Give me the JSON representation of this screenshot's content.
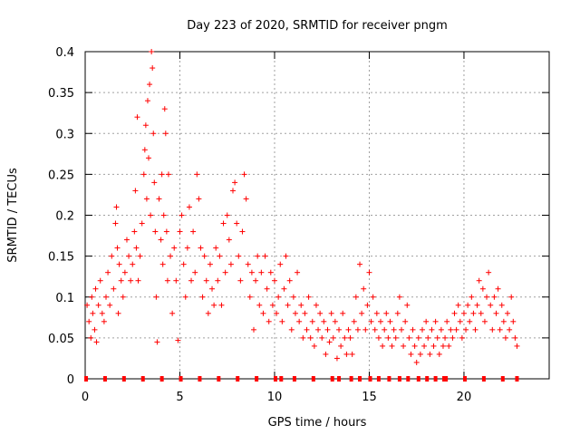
{
  "chart_data": {
    "type": "scatter",
    "title": "Day 223 of 2020, SRMTID for receiver pngm",
    "xlabel": "GPS time / hours",
    "ylabel": "SRMTID / TECUs",
    "xlim": [
      0,
      24.5
    ],
    "ylim": [
      0,
      0.4
    ],
    "x_ticks": [
      0,
      5,
      10,
      15,
      20
    ],
    "x_tick_labels": [
      "0",
      "5",
      "10",
      "15",
      "20"
    ],
    "y_ticks": [
      0,
      0.05,
      0.1,
      0.15,
      0.2,
      0.25,
      0.3,
      0.35,
      0.4
    ],
    "y_tick_labels": [
      "0",
      "0.05",
      "0.1",
      "0.15",
      "0.2",
      "0.25",
      "0.3",
      "0.35",
      "0.4"
    ],
    "grid": true,
    "marker": "+",
    "color": "#ff0000",
    "series": [
      {
        "name": "SRMTID",
        "points": [
          [
            0.1,
            0.09
          ],
          [
            0.2,
            0.07
          ],
          [
            0.3,
            0.05
          ],
          [
            0.35,
            0.1
          ],
          [
            0.4,
            0.08
          ],
          [
            0.5,
            0.06
          ],
          [
            0.55,
            0.11
          ],
          [
            0.6,
            0.045
          ],
          [
            0.7,
            0.09
          ],
          [
            0.8,
            0.12
          ],
          [
            0.9,
            0.08
          ],
          [
            1.0,
            0.07
          ],
          [
            1.1,
            0.1
          ],
          [
            1.2,
            0.13
          ],
          [
            1.3,
            0.09
          ],
          [
            1.4,
            0.15
          ],
          [
            1.5,
            0.11
          ],
          [
            1.6,
            0.19
          ],
          [
            1.65,
            0.21
          ],
          [
            1.7,
            0.16
          ],
          [
            1.75,
            0.08
          ],
          [
            1.8,
            0.14
          ],
          [
            1.9,
            0.12
          ],
          [
            2.0,
            0.1
          ],
          [
            2.1,
            0.13
          ],
          [
            2.2,
            0.17
          ],
          [
            2.3,
            0.15
          ],
          [
            2.4,
            0.12
          ],
          [
            2.5,
            0.14
          ],
          [
            2.6,
            0.18
          ],
          [
            2.65,
            0.23
          ],
          [
            2.7,
            0.16
          ],
          [
            2.75,
            0.32
          ],
          [
            2.8,
            0.12
          ],
          [
            2.9,
            0.15
          ],
          [
            3.0,
            0.19
          ],
          [
            3.1,
            0.25
          ],
          [
            3.15,
            0.28
          ],
          [
            3.2,
            0.31
          ],
          [
            3.25,
            0.22
          ],
          [
            3.3,
            0.34
          ],
          [
            3.35,
            0.27
          ],
          [
            3.4,
            0.36
          ],
          [
            3.45,
            0.2
          ],
          [
            3.5,
            0.4
          ],
          [
            3.55,
            0.38
          ],
          [
            3.6,
            0.3
          ],
          [
            3.65,
            0.24
          ],
          [
            3.7,
            0.18
          ],
          [
            3.75,
            0.1
          ],
          [
            3.8,
            0.045
          ],
          [
            3.9,
            0.22
          ],
          [
            4.0,
            0.17
          ],
          [
            4.05,
            0.25
          ],
          [
            4.1,
            0.14
          ],
          [
            4.15,
            0.2
          ],
          [
            4.2,
            0.33
          ],
          [
            4.25,
            0.3
          ],
          [
            4.3,
            0.18
          ],
          [
            4.35,
            0.12
          ],
          [
            4.4,
            0.25
          ],
          [
            4.5,
            0.15
          ],
          [
            4.6,
            0.08
          ],
          [
            4.7,
            0.16
          ],
          [
            4.8,
            0.12
          ],
          [
            4.9,
            0.047
          ],
          [
            5.0,
            0.18
          ],
          [
            5.1,
            0.2
          ],
          [
            5.2,
            0.14
          ],
          [
            5.3,
            0.1
          ],
          [
            5.4,
            0.16
          ],
          [
            5.5,
            0.21
          ],
          [
            5.6,
            0.12
          ],
          [
            5.7,
            0.18
          ],
          [
            5.8,
            0.13
          ],
          [
            5.9,
            0.25
          ],
          [
            6.0,
            0.22
          ],
          [
            6.1,
            0.16
          ],
          [
            6.2,
            0.1
          ],
          [
            6.3,
            0.15
          ],
          [
            6.4,
            0.12
          ],
          [
            6.5,
            0.08
          ],
          [
            6.6,
            0.14
          ],
          [
            6.7,
            0.11
          ],
          [
            6.8,
            0.09
          ],
          [
            6.9,
            0.16
          ],
          [
            7.0,
            0.12
          ],
          [
            7.1,
            0.15
          ],
          [
            7.2,
            0.09
          ],
          [
            7.3,
            0.19
          ],
          [
            7.4,
            0.13
          ],
          [
            7.5,
            0.2
          ],
          [
            7.6,
            0.17
          ],
          [
            7.7,
            0.14
          ],
          [
            7.8,
            0.23
          ],
          [
            7.9,
            0.24
          ],
          [
            8.0,
            0.19
          ],
          [
            8.1,
            0.15
          ],
          [
            8.2,
            0.12
          ],
          [
            8.3,
            0.18
          ],
          [
            8.4,
            0.25
          ],
          [
            8.5,
            0.22
          ],
          [
            8.6,
            0.14
          ],
          [
            8.7,
            0.1
          ],
          [
            8.8,
            0.13
          ],
          [
            8.9,
            0.06
          ],
          [
            9.0,
            0.12
          ],
          [
            9.1,
            0.15
          ],
          [
            9.2,
            0.09
          ],
          [
            9.3,
            0.13
          ],
          [
            9.4,
            0.08
          ],
          [
            9.5,
            0.15
          ],
          [
            9.6,
            0.11
          ],
          [
            9.7,
            0.07
          ],
          [
            9.8,
            0.13
          ],
          [
            9.9,
            0.09
          ],
          [
            10.0,
            0.12
          ],
          [
            10.1,
            0.08
          ],
          [
            10.2,
            0.1
          ],
          [
            10.3,
            0.14
          ],
          [
            10.4,
            0.07
          ],
          [
            10.5,
            0.11
          ],
          [
            10.6,
            0.15
          ],
          [
            10.7,
            0.09
          ],
          [
            10.8,
            0.12
          ],
          [
            10.9,
            0.06
          ],
          [
            11.0,
            0.1
          ],
          [
            11.1,
            0.08
          ],
          [
            11.2,
            0.13
          ],
          [
            11.3,
            0.07
          ],
          [
            11.4,
            0.09
          ],
          [
            11.5,
            0.05
          ],
          [
            11.6,
            0.08
          ],
          [
            11.7,
            0.06
          ],
          [
            11.8,
            0.1
          ],
          [
            11.9,
            0.05
          ],
          [
            12.0,
            0.07
          ],
          [
            12.1,
            0.04
          ],
          [
            12.2,
            0.09
          ],
          [
            12.3,
            0.06
          ],
          [
            12.4,
            0.08
          ],
          [
            12.5,
            0.05
          ],
          [
            12.6,
            0.07
          ],
          [
            12.7,
            0.03
          ],
          [
            12.8,
            0.06
          ],
          [
            12.9,
            0.045
          ],
          [
            13.0,
            0.08
          ],
          [
            13.1,
            0.05
          ],
          [
            13.2,
            0.07
          ],
          [
            13.3,
            0.025
          ],
          [
            13.4,
            0.06
          ],
          [
            13.5,
            0.04
          ],
          [
            13.6,
            0.08
          ],
          [
            13.7,
            0.05
          ],
          [
            13.8,
            0.03
          ],
          [
            13.9,
            0.06
          ],
          [
            14.0,
            0.05
          ],
          [
            14.1,
            0.03
          ],
          [
            14.2,
            0.07
          ],
          [
            14.3,
            0.1
          ],
          [
            14.4,
            0.06
          ],
          [
            14.5,
            0.14
          ],
          [
            14.6,
            0.08
          ],
          [
            14.7,
            0.11
          ],
          [
            14.8,
            0.06
          ],
          [
            14.9,
            0.09
          ],
          [
            15.0,
            0.13
          ],
          [
            15.1,
            0.07
          ],
          [
            15.2,
            0.1
          ],
          [
            15.3,
            0.06
          ],
          [
            15.4,
            0.08
          ],
          [
            15.5,
            0.05
          ],
          [
            15.6,
            0.07
          ],
          [
            15.7,
            0.04
          ],
          [
            15.8,
            0.06
          ],
          [
            15.9,
            0.08
          ],
          [
            16.0,
            0.05
          ],
          [
            16.1,
            0.07
          ],
          [
            16.2,
            0.04
          ],
          [
            16.3,
            0.06
          ],
          [
            16.4,
            0.05
          ],
          [
            16.5,
            0.08
          ],
          [
            16.6,
            0.1
          ],
          [
            16.7,
            0.06
          ],
          [
            16.8,
            0.04
          ],
          [
            16.9,
            0.07
          ],
          [
            17.0,
            0.09
          ],
          [
            17.1,
            0.05
          ],
          [
            17.2,
            0.03
          ],
          [
            17.3,
            0.06
          ],
          [
            17.4,
            0.04
          ],
          [
            17.5,
            0.02
          ],
          [
            17.6,
            0.05
          ],
          [
            17.7,
            0.03
          ],
          [
            17.8,
            0.06
          ],
          [
            17.9,
            0.04
          ],
          [
            18.0,
            0.07
          ],
          [
            18.1,
            0.05
          ],
          [
            18.2,
            0.03
          ],
          [
            18.3,
            0.06
          ],
          [
            18.4,
            0.04
          ],
          [
            18.5,
            0.07
          ],
          [
            18.6,
            0.05
          ],
          [
            18.7,
            0.03
          ],
          [
            18.8,
            0.06
          ],
          [
            18.9,
            0.04
          ],
          [
            19.0,
            0.05
          ],
          [
            19.1,
            0.07
          ],
          [
            19.2,
            0.04
          ],
          [
            19.3,
            0.06
          ],
          [
            19.4,
            0.05
          ],
          [
            19.5,
            0.08
          ],
          [
            19.6,
            0.06
          ],
          [
            19.7,
            0.09
          ],
          [
            19.8,
            0.07
          ],
          [
            19.9,
            0.05
          ],
          [
            20.0,
            0.08
          ],
          [
            20.1,
            0.06
          ],
          [
            20.2,
            0.09
          ],
          [
            20.3,
            0.07
          ],
          [
            20.4,
            0.1
          ],
          [
            20.5,
            0.08
          ],
          [
            20.6,
            0.06
          ],
          [
            20.7,
            0.09
          ],
          [
            20.8,
            0.12
          ],
          [
            20.9,
            0.08
          ],
          [
            21.0,
            0.11
          ],
          [
            21.1,
            0.07
          ],
          [
            21.2,
            0.1
          ],
          [
            21.3,
            0.13
          ],
          [
            21.4,
            0.09
          ],
          [
            21.5,
            0.06
          ],
          [
            21.6,
            0.1
          ],
          [
            21.7,
            0.08
          ],
          [
            21.8,
            0.11
          ],
          [
            21.9,
            0.06
          ],
          [
            22.0,
            0.09
          ],
          [
            22.1,
            0.07
          ],
          [
            22.2,
            0.05
          ],
          [
            22.3,
            0.08
          ],
          [
            22.4,
            0.06
          ],
          [
            22.5,
            0.1
          ],
          [
            22.6,
            0.07
          ],
          [
            22.7,
            0.05
          ],
          [
            22.8,
            0.04
          ]
        ]
      }
    ],
    "zero_markers_x": [
      0.05,
      1.05,
      2.05,
      3.05,
      4.05,
      5.05,
      6.05,
      7.05,
      8.05,
      9.05,
      10.05,
      10.35,
      11.05,
      12.05,
      13.05,
      13.4,
      14.05,
      14.5,
      15.05,
      15.5,
      16.05,
      16.6,
      17.05,
      17.6,
      18.05,
      18.5,
      18.95,
      19.05,
      20.05,
      21.05,
      22.05,
      22.8
    ]
  }
}
